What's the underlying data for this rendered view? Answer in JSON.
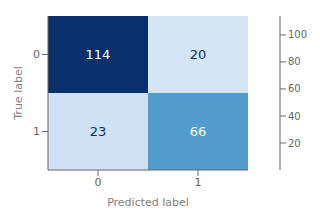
{
  "chart_data": {
    "type": "heatmap",
    "xlabel": "Predicted label",
    "ylabel": "True label",
    "categories": [
      "0",
      "1"
    ],
    "y_categories": [
      "0",
      "1"
    ],
    "cells": [
      [
        114,
        20
      ],
      [
        23,
        66
      ]
    ],
    "data_labels": true,
    "colorbar_range": [
      0,
      114
    ],
    "colorbar_ticks": [
      20,
      40,
      60,
      80,
      100
    ]
  }
}
